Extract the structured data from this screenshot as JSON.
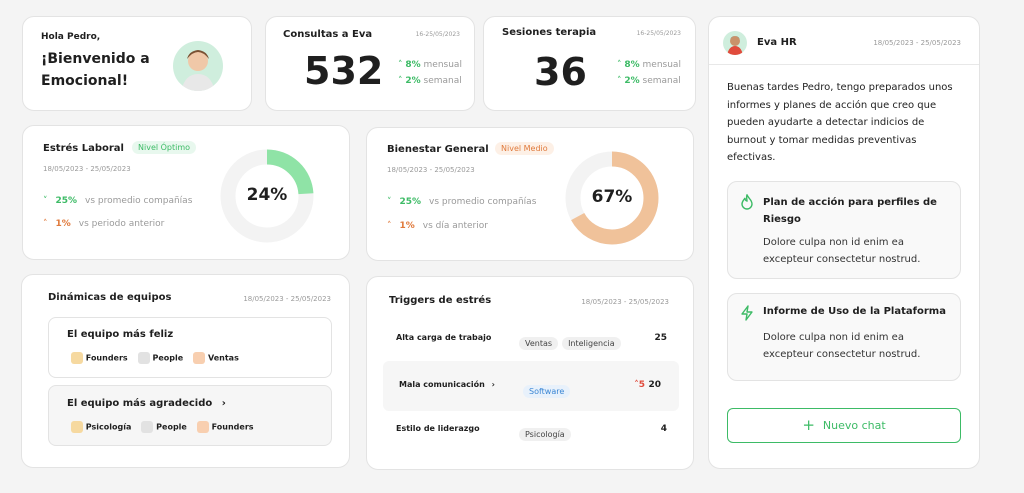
{
  "greeting": {
    "hello": "Hola Pedro,",
    "welcome_line1": "¡Bienvenido a",
    "welcome_line2": "Emocional!"
  },
  "consultas": {
    "title": "Consultas a Eva",
    "date": "16-25/05/2023",
    "value": "532",
    "monthly_pct": "8%",
    "monthly_label": "mensual",
    "weekly_pct": "2%",
    "weekly_label": "semanal"
  },
  "sesiones": {
    "title": "Sesiones terapia",
    "date": "16-25/05/2023",
    "value": "36",
    "monthly_pct": "8%",
    "monthly_label": "mensual",
    "weekly_pct": "2%",
    "weekly_label": "semanal"
  },
  "estres": {
    "title": "Estrés Laboral",
    "badge": "Nivel Óptimo",
    "date": "18/05/2023 - 25/05/2023",
    "row1_val": "25%",
    "row1_label": "vs promedio compañías",
    "row2_val": "1%",
    "row2_label": "vs periodo anterior",
    "gauge_label": "24%",
    "gauge_value": 0.24,
    "color": "#8fe3a6"
  },
  "bienestar": {
    "title": "Bienestar General",
    "badge": "Nivel Medio",
    "date": "18/05/2023 - 25/05/2023",
    "row1_val": "25%",
    "row1_label": "vs promedio compañías",
    "row2_val": "1%",
    "row2_label": "vs día anterior",
    "gauge_label": "67%",
    "gauge_value": 0.67,
    "color": "#f0c29a"
  },
  "dinamicas": {
    "title": "Dinámicas de equipos",
    "date": "18/05/2023 - 25/05/2023",
    "team1": {
      "title": "El equipo más feliz",
      "tags": [
        "Founders",
        "People",
        "Ventas"
      ]
    },
    "team2": {
      "title": "El equipo más agradecido",
      "tags": [
        "Psicología",
        "People",
        "Founders"
      ]
    }
  },
  "triggers": {
    "title": "Triggers de estrés",
    "date": "18/05/2023 - 25/05/2023",
    "rows": [
      {
        "name": "Alta carga de trabajo",
        "tags": [
          "Ventas",
          "Inteligencia"
        ],
        "delta": "",
        "count": "25"
      },
      {
        "name": "Mala comunicación",
        "tags": [
          "Software"
        ],
        "delta": "5",
        "count": "20"
      },
      {
        "name": "Estilo de liderazgo",
        "tags": [
          "Psicología"
        ],
        "delta": "",
        "count": "4"
      }
    ]
  },
  "chat": {
    "name": "Eva HR",
    "date": "18/05/2023 - 25/05/2023",
    "message": "Buenas tardes Pedro, tengo preparados unos informes y planes de acción que creo que pueden ayudarte a detectar indicios de burnout y tomar medidas preventivas efectivas.",
    "item1_title": "Plan de acción para perfiles de Riesgo",
    "item1_text": "Dolore culpa non id enim ea excepteur consectetur nostrud.",
    "item2_title": "Informe de Uso de la Plataforma",
    "item2_text": "Dolore culpa non id enim ea excepteur consectetur nostrud.",
    "new_chat": "Nuevo chat"
  },
  "colors": {
    "green": "#3dbb66",
    "orange": "#e07a3c",
    "accent": "#2fa866"
  }
}
